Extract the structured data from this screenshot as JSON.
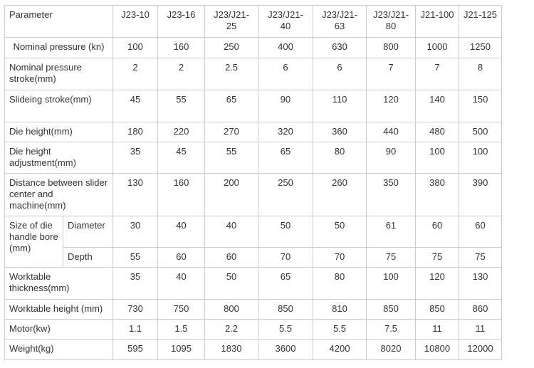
{
  "table": {
    "header": [
      "Parameter",
      "J23-10",
      "J23-16",
      "J23/J21-25",
      "J23/J21-40",
      "J23/J21-63",
      "J23/J21-80",
      "J21-100",
      "J21-125"
    ],
    "rows": {
      "nominal_pressure": {
        "label": "Nominal pressure (kn)",
        "values": [
          "100",
          "160",
          "250",
          "400",
          "630",
          "800",
          "1000",
          "1250"
        ]
      },
      "nominal_pressure_stroke": {
        "label": "Nominal pressure stroke(mm)",
        "values": [
          "2",
          "2",
          "2.5",
          "6",
          "6",
          "7",
          "7",
          "8"
        ]
      },
      "sliding_stroke": {
        "label": "Slideing stroke(mm)",
        "values": [
          "45",
          "55",
          "65",
          "90",
          "110",
          "120",
          "140",
          "150"
        ]
      },
      "die_height": {
        "label": "Die height(mm)",
        "values": [
          "180",
          "220",
          "270",
          "320",
          "360",
          "440",
          "480",
          "500"
        ]
      },
      "die_height_adjustment": {
        "label": "Die height adjustment(mm)",
        "values": [
          "35",
          "45",
          "55",
          "65",
          "80",
          "90",
          "100",
          "100"
        ]
      },
      "distance_slider": {
        "label": "Distance between slider center and machine(mm)",
        "values": [
          "130",
          "160",
          "200",
          "250",
          "260",
          "350",
          "380",
          "390"
        ]
      },
      "die_handle_bore": {
        "label": "Size of die handle bore (mm)",
        "diameter": {
          "label": "Diameter",
          "values": [
            "30",
            "40",
            "40",
            "50",
            "50",
            "61",
            "60",
            "60"
          ]
        },
        "depth": {
          "label": "Depth",
          "values": [
            "55",
            "60",
            "60",
            "70",
            "70",
            "75",
            "75",
            "75"
          ]
        }
      },
      "worktable_thickness": {
        "label": "Worktable thickness(mm)",
        "values": [
          "35",
          "40",
          "50",
          "65",
          "80",
          "100",
          "120",
          "130"
        ]
      },
      "worktable_height": {
        "label": "Worktable height (mm)",
        "values": [
          "730",
          "750",
          "800",
          "850",
          "810",
          "850",
          "850",
          "860"
        ]
      },
      "motor": {
        "label": "Motor(kw)",
        "values": [
          "1.1",
          "1.5",
          "2.2",
          "5.5",
          "5.5",
          "7.5",
          "11",
          "11"
        ]
      },
      "weight": {
        "label": "Weight(kg)",
        "values": [
          "595",
          "1095",
          "1830",
          "3600",
          "4200",
          "8020",
          "10800",
          "12000"
        ]
      }
    }
  }
}
